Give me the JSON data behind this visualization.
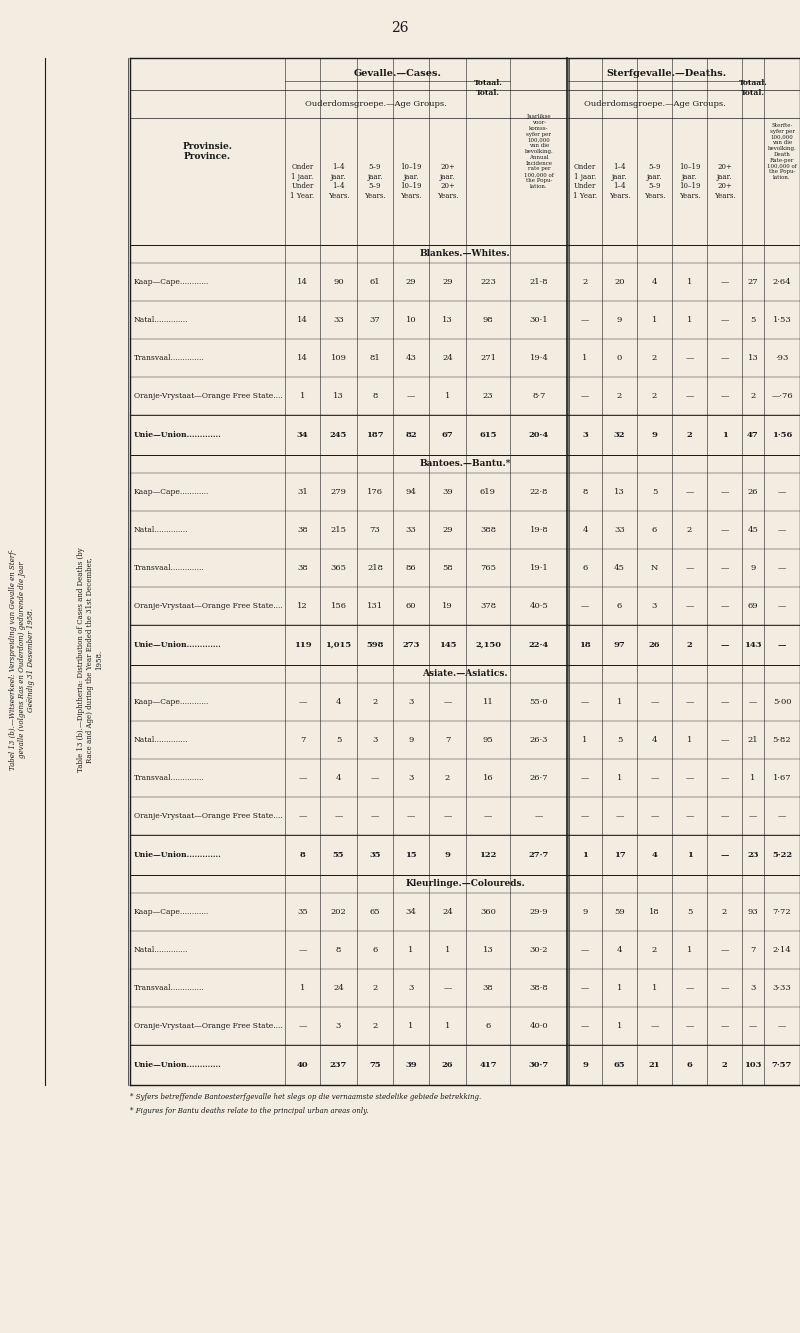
{
  "page_number": "26",
  "bg_color": "#f2ede0",
  "text_color": "#1a1a1a",
  "title_left_lines": [
    "Tabel 13 (b).—Witseerkeel: Verspreiding van Gevalle en Sterf-",
    "gevalle (volgens Ras en Ouderdom) gedurende die Jaar",
    "Geëindig 31 Desember 1958."
  ],
  "title_right_lines": [
    "Table 13 (b).—Diphtheria: Distribution of Cases and Deaths (by",
    "Race and Age) during the Year Ended the 31st December,",
    "1958."
  ],
  "sections": [
    {
      "label": "Blankes.—Whites.",
      "provinces": [
        "Kaap—Cape............",
        "Natal..............",
        "Transvaal..............",
        "Oranje-Vrystaat—Orange Free State...."
      ],
      "union": "Unie—Union.............",
      "cases": {
        "u1": [
          "14",
          "14",
          "14",
          "1",
          "34"
        ],
        "1_4": [
          "90",
          "33",
          "109",
          "13",
          "245"
        ],
        "5_9": [
          "61",
          "37",
          "81",
          "8",
          "187"
        ],
        "10_19": [
          "29",
          "10",
          "43",
          "—",
          "82"
        ],
        "20p": [
          "29",
          "13",
          "24",
          "1",
          "67"
        ],
        "total": [
          "223",
          "98",
          "271",
          "23",
          "615"
        ]
      },
      "incidence": [
        "21·8",
        "30·1",
        "19·4",
        "8·7",
        "20·4"
      ],
      "deaths": {
        "u1": [
          "2",
          "—",
          "1",
          "—",
          "3"
        ],
        "1_4": [
          "20",
          "9",
          "0",
          "2",
          "32"
        ],
        "5_9": [
          "4",
          "1",
          "2",
          "2",
          "9"
        ],
        "10_19": [
          "1",
          "1",
          "—",
          "—",
          "2"
        ],
        "20p": [
          "—",
          "—",
          "—",
          "—",
          "1"
        ],
        "total": [
          "27",
          "5",
          "13",
          "2",
          "47"
        ]
      },
      "death_rate": [
        "2·64",
        "1·53",
        "·93",
        "—·76",
        "1·56"
      ]
    },
    {
      "label": "Bantoes.—Bantu.*",
      "provinces": [
        "Kaap—Cape............",
        "Natal..............",
        "Transvaal..............",
        "Oranje-Vrystaat—Orange Free State...."
      ],
      "union": "Unie—Union.............",
      "cases": {
        "u1": [
          "31",
          "38",
          "38",
          "12",
          "119"
        ],
        "1_4": [
          "279",
          "215",
          "365",
          "156",
          "1,015"
        ],
        "5_9": [
          "176",
          "73",
          "218",
          "131",
          "598"
        ],
        "10_19": [
          "94",
          "33",
          "86",
          "60",
          "273"
        ],
        "20p": [
          "39",
          "29",
          "58",
          "19",
          "145"
        ],
        "total": [
          "619",
          "388",
          "765",
          "378",
          "2,150"
        ]
      },
      "incidence": [
        "22·8",
        "19·8",
        "19·1",
        "40·5",
        "22·4"
      ],
      "deaths": {
        "u1": [
          "8",
          "4",
          "6",
          "—",
          "18"
        ],
        "1_4": [
          "13",
          "33",
          "45",
          "6",
          "97"
        ],
        "5_9": [
          "5",
          "6",
          "N",
          "3",
          "26"
        ],
        "10_19": [
          "—",
          "2",
          "—",
          "—",
          "2"
        ],
        "20p": [
          "—",
          "—",
          "—",
          "—",
          "—"
        ],
        "total": [
          "26",
          "45",
          "9",
          "69",
          "143"
        ]
      },
      "death_rate": [
        "—",
        "—",
        "—",
        "—",
        "—"
      ]
    },
    {
      "label": "Asiate.—Asiatics.",
      "provinces": [
        "Kaap—Cape............",
        "Natal..............",
        "Transvaal..............",
        "Oranje-Vrystaat—Orange Free State...."
      ],
      "union": "Unie—Union.............",
      "cases": {
        "u1": [
          "—",
          "7",
          "—",
          "—",
          "8"
        ],
        "1_4": [
          "4",
          "5",
          "4",
          "—",
          "55"
        ],
        "5_9": [
          "2",
          "3",
          "—",
          "—",
          "35"
        ],
        "10_19": [
          "3",
          "9",
          "3",
          "—",
          "15"
        ],
        "20p": [
          "—",
          "7",
          "2",
          "—",
          "9"
        ],
        "total": [
          "11",
          "95",
          "16",
          "—",
          "122"
        ]
      },
      "incidence": [
        "55·0",
        "26·3",
        "26·7",
        "—",
        "27·7"
      ],
      "deaths": {
        "u1": [
          "—",
          "1",
          "—",
          "—",
          "1"
        ],
        "1_4": [
          "1",
          "5",
          "1",
          "—",
          "17"
        ],
        "5_9": [
          "—",
          "4",
          "—",
          "—",
          "4"
        ],
        "10_19": [
          "—",
          "1",
          "—",
          "—",
          "1"
        ],
        "20p": [
          "—",
          "—",
          "—",
          "—",
          "—"
        ],
        "total": [
          "—",
          "21",
          "1",
          "—",
          "23"
        ]
      },
      "death_rate": [
        "5·00",
        "5·82",
        "1·67",
        "—",
        "5·22"
      ]
    },
    {
      "label": "Kleurlinge.—Coloureds.",
      "provinces": [
        "Kaap—Cape............",
        "Natal..............",
        "Transvaal..............",
        "Oranje-Vrystaat—Orange Free State...."
      ],
      "union": "Unie—Union.............",
      "cases": {
        "u1": [
          "35",
          "—",
          "1",
          "—",
          "40"
        ],
        "1_4": [
          "202",
          "8",
          "24",
          "3",
          "237"
        ],
        "5_9": [
          "65",
          "6",
          "2",
          "2",
          "75"
        ],
        "10_19": [
          "34",
          "1",
          "3",
          "1",
          "39"
        ],
        "20p": [
          "24",
          "1",
          "—",
          "1",
          "26"
        ],
        "total": [
          "360",
          "13",
          "38",
          "6",
          "417"
        ]
      },
      "incidence": [
        "29·9",
        "30·2",
        "38·8",
        "40·0",
        "30·7"
      ],
      "deaths": {
        "u1": [
          "9",
          "—",
          "—",
          "—",
          "9"
        ],
        "1_4": [
          "59",
          "4",
          "1",
          "1",
          "65"
        ],
        "5_9": [
          "18",
          "2",
          "1",
          "—",
          "21"
        ],
        "10_19": [
          "5",
          "1",
          "—",
          "—",
          "6"
        ],
        "20p": [
          "2",
          "—",
          "—",
          "—",
          "2"
        ],
        "total": [
          "93",
          "7",
          "3",
          "—",
          "103"
        ]
      },
      "death_rate": [
        "7·72",
        "2·14",
        "3·33",
        "—",
        "7·57"
      ]
    }
  ],
  "footnotes": [
    "* Syfers betreffende Bantoesterfgevalle het slegs op die vernaamste stedelike gebiede betrekking.",
    "* Figures for Bantu deaths relate to the principal urban areas only."
  ]
}
